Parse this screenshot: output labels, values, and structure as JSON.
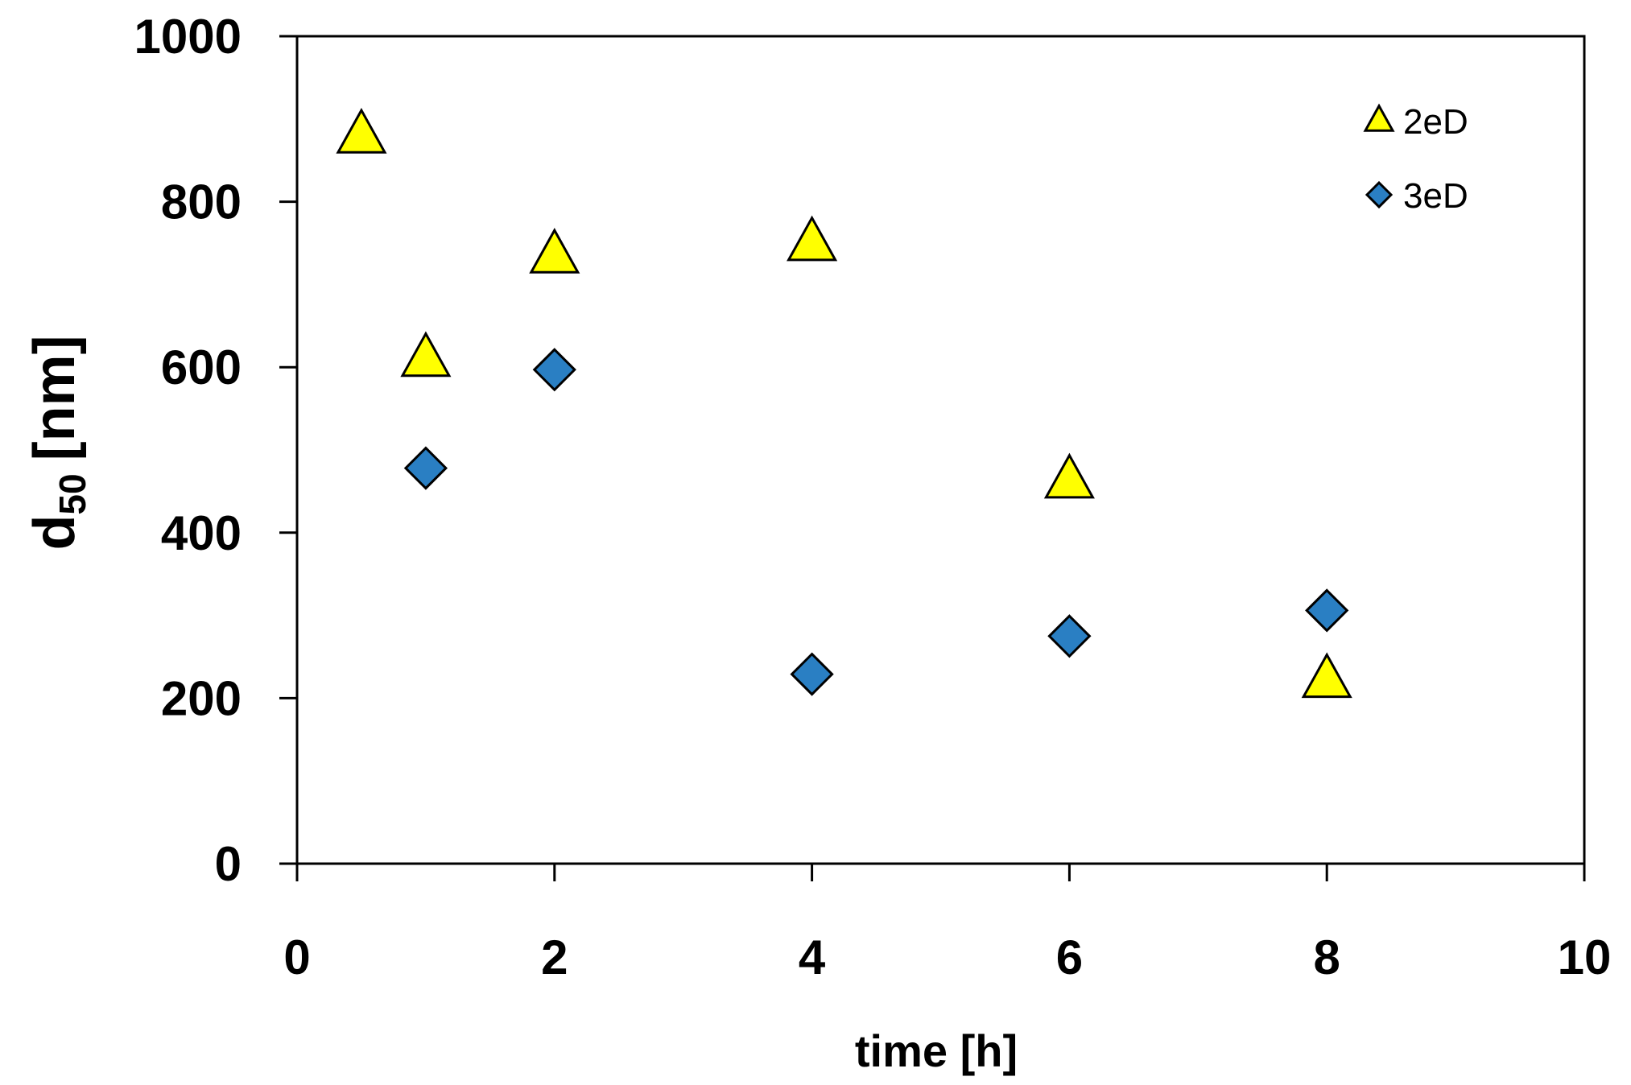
{
  "chart_data": {
    "type": "scatter",
    "title": "",
    "xlabel": "time  [h]",
    "ylabel_main": "d",
    "ylabel_sub": "50",
    "ylabel_unit": "[nm]",
    "xlim": [
      0,
      10
    ],
    "ylim": [
      0,
      1000
    ],
    "xticks": [
      0,
      2,
      4,
      6,
      8,
      10
    ],
    "yticks": [
      0,
      200,
      400,
      600,
      800,
      1000
    ],
    "grid": false,
    "legend_position": "top-right",
    "series": [
      {
        "name": "2eD",
        "marker": "triangle",
        "color": "#ffff00",
        "x": [
          0.5,
          1,
          2,
          4,
          6,
          8
        ],
        "y": [
          880,
          610,
          735,
          750,
          463,
          222
        ]
      },
      {
        "name": "3eD",
        "marker": "diamond",
        "color": "#2a7fc3",
        "x": [
          1,
          2,
          4,
          6,
          8
        ],
        "y": [
          478,
          597,
          229,
          275,
          306
        ]
      }
    ]
  }
}
